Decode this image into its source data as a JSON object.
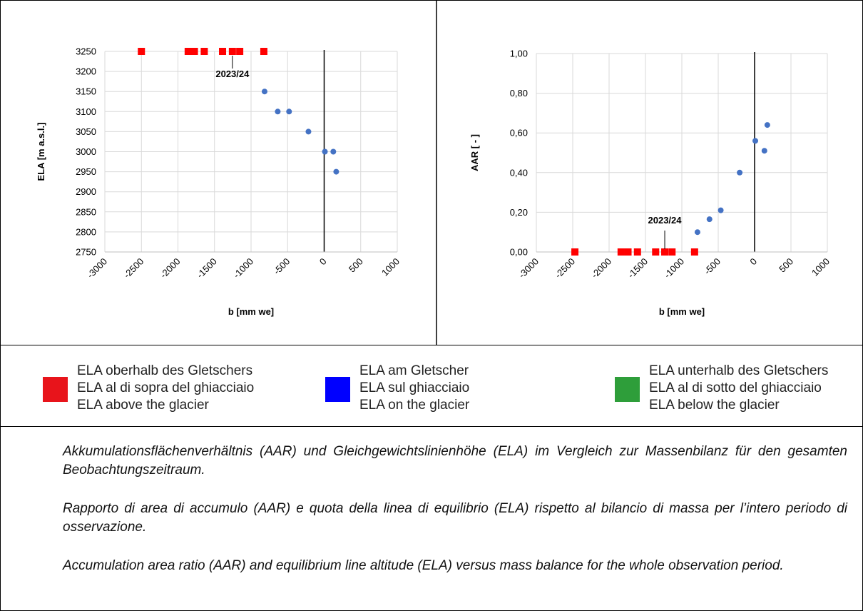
{
  "chart_data": [
    {
      "type": "scatter",
      "x_label": "b [mm we]",
      "y_label": "ELA [m a.s.l.]",
      "xlim": [
        -3000,
        1000
      ],
      "xticks": [
        -3000,
        -2500,
        -2000,
        -1500,
        -1000,
        -500,
        0,
        500,
        1000
      ],
      "ylim": [
        2750,
        3250
      ],
      "yticks": [
        2750,
        2800,
        2850,
        2900,
        2950,
        3000,
        3050,
        3100,
        3150,
        3200,
        3250
      ],
      "grid": true,
      "series": [
        {
          "color": "#ff0000",
          "marker": "square",
          "x": [
            -2500,
            -1860,
            -1775,
            -1640,
            -1390,
            -1255,
            -1155,
            -825
          ],
          "values": [
            3250,
            3250,
            3250,
            3250,
            3250,
            3250,
            3250,
            3250
          ]
        },
        {
          "color": "#4472c4",
          "marker": "circle",
          "x": [
            -815,
            -635,
            -480,
            -215,
            10,
            125,
            165
          ],
          "values": [
            3150,
            3100,
            3100,
            3050,
            3000,
            3000,
            2950
          ]
        }
      ],
      "annotation": {
        "text": "2023/24",
        "x": -1255,
        "y": 3250
      }
    },
    {
      "type": "scatter",
      "x_label": "b [mm we]",
      "y_label": "AAR [ - ]",
      "xlim": [
        -3000,
        1000
      ],
      "xticks": [
        -3000,
        -2500,
        -2000,
        -1500,
        -1000,
        -500,
        0,
        500,
        1000
      ],
      "ylim": [
        0,
        1
      ],
      "yticks": [
        {
          "value": 0,
          "label": "0,00"
        },
        {
          "value": 0.2,
          "label": "0,20"
        },
        {
          "value": 0.4,
          "label": "0,40"
        },
        {
          "value": 0.6,
          "label": "0,60"
        },
        {
          "value": 0.8,
          "label": "0,80"
        },
        {
          "value": 1,
          "label": "1,00"
        }
      ],
      "grid": true,
      "series": [
        {
          "color": "#ff0000",
          "marker": "square",
          "x": [
            -2470,
            -1835,
            -1740,
            -1610,
            -1360,
            -1235,
            -1135,
            -825
          ],
          "values": [
            0,
            0,
            0,
            0,
            0,
            0,
            0,
            0
          ]
        },
        {
          "color": "#4472c4",
          "marker": "circle",
          "x": [
            -785,
            -620,
            -465,
            -205,
            10,
            135,
            175
          ],
          "values": [
            0.1,
            0.165,
            0.21,
            0.4,
            0.56,
            0.51,
            0.64
          ]
        }
      ],
      "annotation": {
        "text": "2023/24",
        "x": -1235,
        "y": 0
      }
    }
  ],
  "legend": [
    {
      "color": "#e8141b",
      "lines": [
        "ELA oberhalb des Gletschers",
        "ELA al di sopra del ghiacciaio",
        "ELA above the glacier"
      ]
    },
    {
      "color": "#0000ff",
      "lines": [
        "ELA am Gletscher",
        "ELA sul ghiacciaio",
        "ELA on the glacier"
      ]
    },
    {
      "color": "#2e9e3a",
      "lines": [
        "ELA unterhalb des Gletschers",
        "ELA al di sotto del ghiacciaio",
        "ELA below the glacier"
      ]
    }
  ],
  "caption": [
    "Akkumulationsflächenverhältnis (AAR) und Gleichgewichtslinienhöhe (ELA) im Vergleich zur Massenbilanz für den gesamten Beobachtungszeitraum.",
    "Rapporto di area di accumulo (AAR) e quota della linea di equilibrio (ELA) rispetto al bilancio di massa per l’intero periodo di osservazione.",
    "Accumulation area ratio (AAR) and equilibrium line altitude (ELA) versus mass balance for the whole observation period."
  ]
}
